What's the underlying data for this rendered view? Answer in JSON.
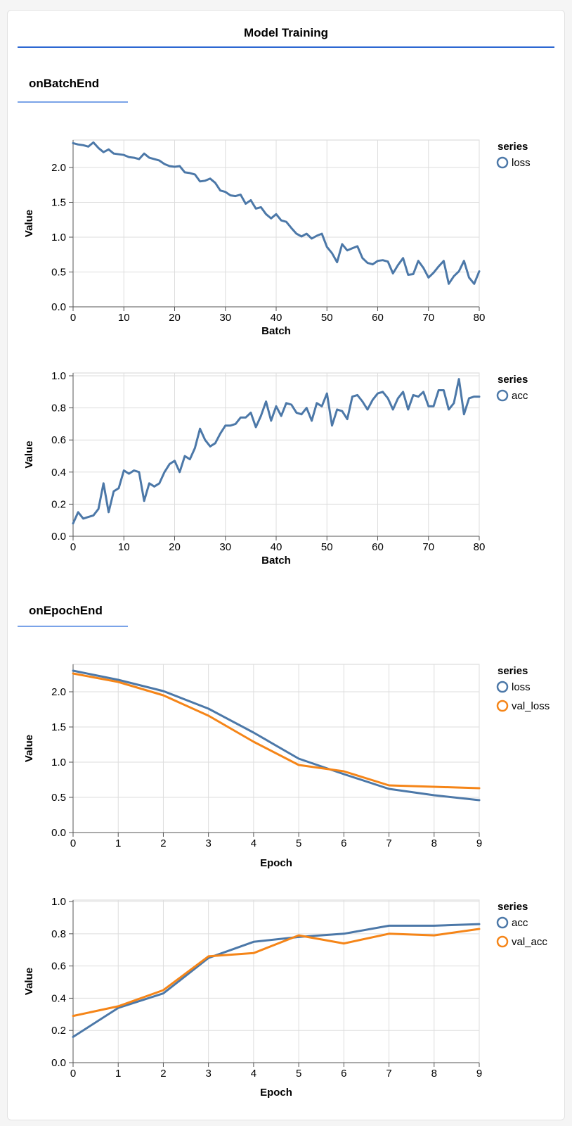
{
  "title": "Model Training",
  "sections": [
    {
      "heading": "onBatchEnd"
    },
    {
      "heading": "onEpochEnd"
    }
  ],
  "colors": {
    "title_underline": "#2d68d2",
    "section_underline": "#7aa3e8",
    "series_blue": "#4c78a8",
    "series_orange": "#f58518",
    "grid": "#dddddd",
    "plot_border": "#d6d6d6",
    "axis_domain": "#555555",
    "text": "#000000"
  },
  "chart_data": [
    {
      "id": "batch-loss",
      "section": "onBatchEnd",
      "type": "line",
      "title": "",
      "xlabel": "Batch",
      "ylabel": "Value",
      "legend_title": "series",
      "legend_position": "right",
      "grid": true,
      "x_start": 0,
      "x_step": 1,
      "xlim": [
        0,
        80
      ],
      "ylim": [
        0,
        2.394
      ],
      "xticks": [
        0,
        10,
        20,
        30,
        40,
        50,
        60,
        70,
        80
      ],
      "yticks": [
        0.0,
        0.5,
        1.0,
        1.5,
        2.0
      ],
      "series": [
        {
          "name": "loss",
          "color": "#4c78a8",
          "values": [
            2.35,
            2.33,
            2.32,
            2.3,
            2.36,
            2.28,
            2.22,
            2.26,
            2.2,
            2.19,
            2.18,
            2.15,
            2.14,
            2.12,
            2.2,
            2.14,
            2.12,
            2.1,
            2.05,
            2.02,
            2.01,
            2.02,
            1.93,
            1.92,
            1.9,
            1.8,
            1.81,
            1.84,
            1.78,
            1.67,
            1.65,
            1.6,
            1.59,
            1.61,
            1.48,
            1.53,
            1.41,
            1.43,
            1.33,
            1.27,
            1.33,
            1.24,
            1.22,
            1.13,
            1.05,
            1.01,
            1.05,
            0.98,
            1.02,
            1.05,
            0.86,
            0.77,
            0.64,
            0.9,
            0.81,
            0.84,
            0.87,
            0.7,
            0.63,
            0.61,
            0.66,
            0.67,
            0.65,
            0.48,
            0.6,
            0.7,
            0.46,
            0.47,
            0.66,
            0.56,
            0.42,
            0.49,
            0.58,
            0.66,
            0.33,
            0.44,
            0.51,
            0.66,
            0.42,
            0.33,
            0.51
          ]
        }
      ]
    },
    {
      "id": "batch-acc",
      "section": "onBatchEnd",
      "type": "line",
      "title": "",
      "xlabel": "Batch",
      "ylabel": "Value",
      "legend_title": "series",
      "legend_position": "right",
      "grid": true,
      "x_start": 0,
      "x_step": 1,
      "xlim": [
        0,
        80
      ],
      "ylim": [
        0,
        1.0175
      ],
      "xticks": [
        0,
        10,
        20,
        30,
        40,
        50,
        60,
        70,
        80
      ],
      "yticks": [
        0.0,
        0.2,
        0.4,
        0.6,
        0.8,
        1.0
      ],
      "series": [
        {
          "name": "acc",
          "color": "#4c78a8",
          "values": [
            0.08,
            0.15,
            0.11,
            0.12,
            0.13,
            0.17,
            0.33,
            0.15,
            0.28,
            0.3,
            0.41,
            0.39,
            0.41,
            0.4,
            0.22,
            0.33,
            0.31,
            0.33,
            0.4,
            0.45,
            0.47,
            0.4,
            0.5,
            0.48,
            0.55,
            0.67,
            0.6,
            0.56,
            0.58,
            0.64,
            0.69,
            0.69,
            0.7,
            0.74,
            0.74,
            0.77,
            0.68,
            0.75,
            0.84,
            0.72,
            0.81,
            0.75,
            0.83,
            0.82,
            0.77,
            0.76,
            0.8,
            0.72,
            0.83,
            0.81,
            0.89,
            0.69,
            0.79,
            0.78,
            0.73,
            0.87,
            0.88,
            0.84,
            0.79,
            0.85,
            0.89,
            0.9,
            0.86,
            0.79,
            0.86,
            0.9,
            0.79,
            0.88,
            0.87,
            0.9,
            0.81,
            0.81,
            0.91,
            0.91,
            0.79,
            0.83,
            0.98,
            0.76,
            0.86,
            0.87,
            0.87
          ]
        }
      ]
    },
    {
      "id": "epoch-loss",
      "section": "onEpochEnd",
      "type": "line",
      "title": "",
      "xlabel": "Epoch",
      "ylabel": "Value",
      "legend_title": "series",
      "legend_position": "right",
      "grid": true,
      "x_start": 0,
      "x_step": 1,
      "xlim": [
        0,
        9
      ],
      "ylim": [
        0,
        2.39
      ],
      "xticks": [
        0,
        1,
        2,
        3,
        4,
        5,
        6,
        7,
        8,
        9
      ],
      "yticks": [
        0.0,
        0.5,
        1.0,
        1.5,
        2.0
      ],
      "series": [
        {
          "name": "loss",
          "color": "#4c78a8",
          "values": [
            2.3,
            2.17,
            2.01,
            1.76,
            1.42,
            1.05,
            0.83,
            0.62,
            0.53,
            0.46
          ]
        },
        {
          "name": "val_loss",
          "color": "#f58518",
          "values": [
            2.26,
            2.14,
            1.95,
            1.66,
            1.29,
            0.96,
            0.87,
            0.67,
            0.65,
            0.63
          ]
        }
      ]
    },
    {
      "id": "epoch-acc",
      "section": "onEpochEnd",
      "type": "line",
      "title": "",
      "xlabel": "Epoch",
      "ylabel": "Value",
      "legend_title": "series",
      "legend_position": "right",
      "grid": true,
      "x_start": 0,
      "x_step": 1,
      "xlim": [
        0,
        9
      ],
      "ylim": [
        0,
        1.009
      ],
      "xticks": [
        0,
        1,
        2,
        3,
        4,
        5,
        6,
        7,
        8,
        9
      ],
      "yticks": [
        0.0,
        0.2,
        0.4,
        0.6,
        0.8,
        1.0
      ],
      "series": [
        {
          "name": "acc",
          "color": "#4c78a8",
          "values": [
            0.16,
            0.34,
            0.43,
            0.65,
            0.75,
            0.78,
            0.8,
            0.85,
            0.85,
            0.86
          ]
        },
        {
          "name": "val_acc",
          "color": "#f58518",
          "values": [
            0.29,
            0.35,
            0.45,
            0.66,
            0.68,
            0.79,
            0.74,
            0.8,
            0.79,
            0.83
          ]
        }
      ]
    }
  ]
}
